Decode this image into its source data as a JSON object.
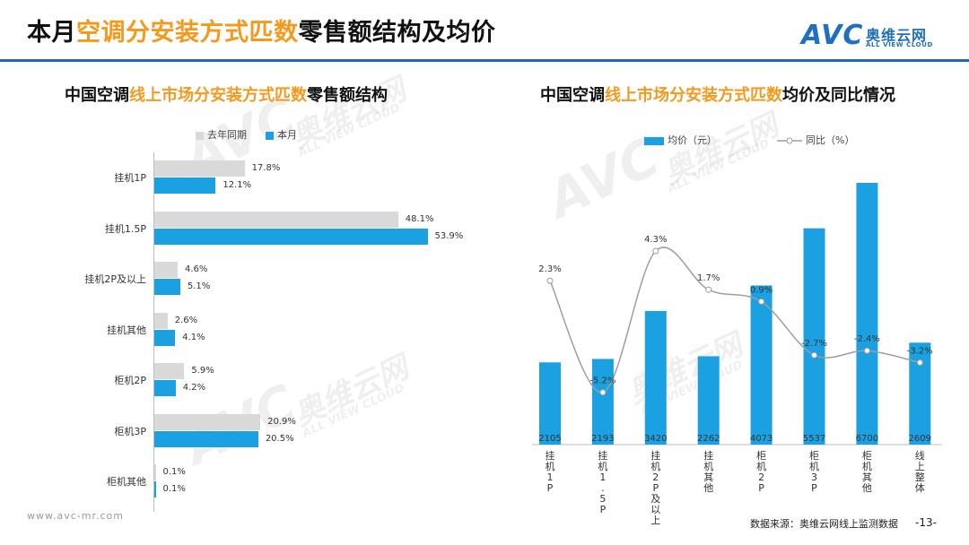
{
  "header": {
    "title_prefix": "本月",
    "title_highlight": "空调分安装方式匹数",
    "title_suffix": "零售额结构及均价"
  },
  "logo": {
    "brand": "AVC",
    "cn": "奥维云网",
    "en": "ALL VIEW CLOUD"
  },
  "watermark": {
    "brand": "AVC",
    "cn": "奥维云网",
    "en": "ALL VIEW CLOUD"
  },
  "left_panel": {
    "subtitle_prefix": "中国空调",
    "subtitle_highlight": "线上市场分安装方式匹数",
    "subtitle_suffix": "零售额结构"
  },
  "right_panel": {
    "subtitle_prefix": "中国空调",
    "subtitle_highlight": "线上市场分安装方式匹数",
    "subtitle_suffix": "均价及同比情况"
  },
  "colors": {
    "accent_orange": "#F39A1E",
    "rule_blue": "#1D6AB4",
    "bar_blue": "#1BA1E2",
    "bar_gray": "#D9D9D9",
    "line_gray": "#9E9E9E"
  },
  "chart_data": [
    {
      "type": "bar",
      "orientation": "horizontal",
      "categories": [
        "挂机1P",
        "挂机1.5P",
        "挂机2P及以上",
        "挂机其他",
        "柜机2P",
        "柜机3P",
        "柜机其他"
      ],
      "series": [
        {
          "name": "去年同期",
          "values": [
            17.8,
            48.1,
            4.6,
            2.6,
            5.9,
            20.9,
            0.1
          ],
          "labels": [
            "17.8%",
            "48.1%",
            "4.6%",
            "2.6%",
            "5.9%",
            "20.9%",
            "0.1%"
          ]
        },
        {
          "name": "本月",
          "values": [
            12.1,
            53.9,
            5.1,
            4.1,
            4.2,
            20.5,
            0.1
          ],
          "labels": [
            "12.1%",
            "53.9%",
            "5.1%",
            "4.1%",
            "4.2%",
            "20.5%",
            "0.1%"
          ]
        }
      ],
      "unit": "%",
      "legend_position": "top-left",
      "grid": false
    },
    {
      "type": "bar",
      "combo": "bar+line",
      "categories": [
        "挂机1P",
        "挂机1.5P",
        "挂机2P及以上",
        "挂机其他",
        "柜机2P",
        "柜机3P",
        "柜机其他",
        "线上整体"
      ],
      "series": [
        {
          "name": "均价（元）",
          "type": "bar",
          "values": [
            2105,
            2193,
            3420,
            2262,
            4073,
            5537,
            6700,
            2609
          ],
          "labels": [
            "2105",
            "2193",
            "3420",
            "2262",
            "4073",
            "5537",
            "6700",
            "2609"
          ]
        },
        {
          "name": "同比（%）",
          "type": "line",
          "values": [
            2.3,
            -5.2,
            4.3,
            1.7,
            0.9,
            -2.7,
            -2.4,
            -3.2
          ],
          "labels": [
            "2.3%",
            "-5.2%",
            "4.3%",
            "1.7%",
            "0.9%",
            "-2.7%",
            "-2.4%",
            "-3.2%"
          ]
        }
      ],
      "legend_position": "top",
      "grid": false
    }
  ],
  "footer": {
    "url": "www.avc-mr.com",
    "source": "数据来源：奥维云网线上监测数据",
    "page": "-13-"
  }
}
